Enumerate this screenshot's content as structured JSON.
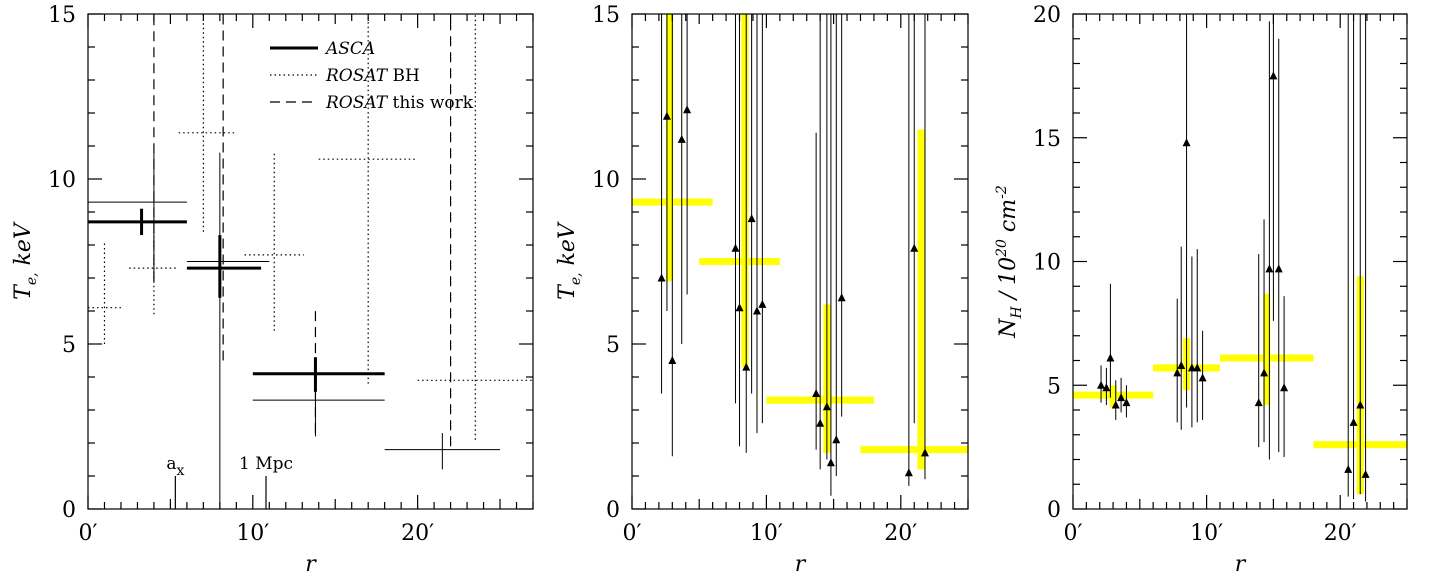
{
  "chart_data": [
    {
      "type": "scatter",
      "xlabel": "r",
      "ylabel": "T_e, keV",
      "xlim": [
        0,
        27
      ],
      "ylim": [
        0,
        15
      ],
      "x_ticks": [
        {
          "v": 0,
          "label": "0′"
        },
        {
          "v": 10,
          "label": "10′"
        },
        {
          "v": 20,
          "label": "20′"
        }
      ],
      "y_ticks": [
        0,
        5,
        10,
        15
      ],
      "legend": {
        "position": "top-right",
        "entries": [
          {
            "label": "ASCA",
            "style": "thick"
          },
          {
            "label": "ROSAT BH",
            "style": "dotted"
          },
          {
            "label": "ROSAT this work",
            "style": "dashed"
          }
        ]
      },
      "annotations": [
        {
          "text": "a_x",
          "x": 5.3
        },
        {
          "text": "1 Mpc",
          "x": 10.8
        }
      ],
      "series": [
        {
          "name": "ASCA",
          "style": "thick",
          "points": [
            {
              "x": 3.25,
              "xerr": [
                3.25,
                2.75
              ],
              "y": 8.7,
              "yerr": [
                0.4,
                0.4
              ]
            },
            {
              "x": 8.0,
              "xerr": [
                2.0,
                2.5
              ],
              "y": 7.3,
              "yerr": [
                0.9,
                1.0
              ]
            },
            {
              "x": 13.8,
              "xerr": [
                3.8,
                4.2
              ],
              "y": 4.1,
              "yerr": [
                0.55,
                0.5
              ]
            }
          ]
        },
        {
          "name": "ASCA thin",
          "style": "thin",
          "points": [
            {
              "x": 4.0,
              "xerr": [
                4.0,
                2.0
              ],
              "y": 9.3,
              "yerr": [
                2.4,
                1.5
              ]
            },
            {
              "x": 8.0,
              "xerr": [
                2.0,
                3.0
              ],
              "y": 7.5,
              "yerr": [
                7.5,
                3.3
              ]
            },
            {
              "x": 13.8,
              "xerr": [
                3.8,
                4.2
              ],
              "y": 3.3,
              "yerr": [
                1.1,
                0.9
              ]
            },
            {
              "x": 21.5,
              "xerr": [
                3.5,
                3.5
              ],
              "y": 1.8,
              "yerr": [
                0.6,
                0.5
              ]
            }
          ]
        },
        {
          "name": "ROSAT BH",
          "style": "dotted",
          "points": [
            {
              "x": 1.0,
              "xerr": [
                1.0,
                1.0
              ],
              "y": 6.1,
              "yerr": [
                1.1,
                2.0
              ]
            },
            {
              "x": 4.0,
              "xerr": [
                1.5,
                1.5
              ],
              "y": 7.3,
              "yerr": [
                1.4,
                1.1
              ]
            },
            {
              "x": 7.0,
              "xerr": [
                1.5,
                2.0
              ],
              "y": 11.4,
              "yerr": [
                3.0,
                3.6
              ]
            },
            {
              "x": 11.3,
              "xerr": [
                1.8,
                1.8
              ],
              "y": 7.7,
              "yerr": [
                2.3,
                3.1
              ]
            },
            {
              "x": 17.0,
              "xerr": [
                3.0,
                3.0
              ],
              "y": 10.6,
              "yerr": [
                6.8,
                4.4
              ]
            },
            {
              "x": 23.5,
              "xerr": [
                3.5,
                3.5
              ],
              "y": 3.9,
              "yerr": [
                1.8,
                11.1
              ]
            }
          ]
        },
        {
          "name": "ROSAT this work",
          "style": "dashed",
          "points": [
            {
              "x": 4.0,
              "y": 10.2,
              "yerr": [
                3.3,
                4.8
              ]
            },
            {
              "x": 8.2,
              "y": 7.7,
              "yerr": [
                3.2,
                7.3
              ]
            },
            {
              "x": 13.8,
              "y": 4.0,
              "yerr": [
                1.7,
                2.1
              ]
            },
            {
              "x": 22.0,
              "y": 3.8,
              "yerr": [
                1.9,
                11.2
              ]
            }
          ]
        }
      ]
    },
    {
      "type": "scatter",
      "xlabel": "r",
      "ylabel": "T_e, keV",
      "xlim": [
        0,
        25
      ],
      "ylim": [
        0,
        15
      ],
      "x_ticks": [
        {
          "v": 0,
          "label": "0′"
        },
        {
          "v": 10,
          "label": "10′"
        },
        {
          "v": 20,
          "label": "20′"
        }
      ],
      "y_ticks": [
        0,
        5,
        10,
        15
      ],
      "bands": [
        {
          "x": [
            0,
            6
          ],
          "y": 9.3,
          "xc": 2.8,
          "ylo": 6.9,
          "yhi": 15.0
        },
        {
          "x": [
            5,
            11
          ],
          "y": 7.5,
          "xc": 8.4,
          "ylo": 4.3,
          "yhi": 15.0
        },
        {
          "x": [
            10,
            18
          ],
          "y": 3.3,
          "xc": 14.5,
          "ylo": 1.7,
          "yhi": 6.2
        },
        {
          "x": [
            17,
            25
          ],
          "y": 1.8,
          "xc": 21.5,
          "ylo": 1.2,
          "yhi": 11.5
        }
      ],
      "points": [
        {
          "x": 2.2,
          "y": 7.0,
          "ylo": 3.5,
          "yhi": 15.0
        },
        {
          "x": 2.6,
          "y": 11.9,
          "ylo": 6.0,
          "yhi": 15.0
        },
        {
          "x": 3.0,
          "y": 4.5,
          "ylo": 1.6,
          "yhi": 15.0
        },
        {
          "x": 3.7,
          "y": 11.2,
          "ylo": 5.0,
          "yhi": 15.0
        },
        {
          "x": 4.1,
          "y": 12.1,
          "ylo": 6.5,
          "yhi": 15.0
        },
        {
          "x": 7.7,
          "y": 7.9,
          "ylo": 3.2,
          "yhi": 15.0
        },
        {
          "x": 8.0,
          "y": 6.1,
          "ylo": 1.9,
          "yhi": 15.0
        },
        {
          "x": 8.5,
          "y": 4.3,
          "ylo": 1.7,
          "yhi": 15.0
        },
        {
          "x": 8.9,
          "y": 8.8,
          "ylo": 3.5,
          "yhi": 15.0
        },
        {
          "x": 9.3,
          "y": 6.0,
          "ylo": 2.3,
          "yhi": 15.0
        },
        {
          "x": 9.7,
          "y": 6.2,
          "ylo": 2.6,
          "yhi": 15.0
        },
        {
          "x": 13.7,
          "y": 3.5,
          "ylo": 1.8,
          "yhi": 11.4
        },
        {
          "x": 14.0,
          "y": 2.6,
          "ylo": 1.2,
          "yhi": 15.0
        },
        {
          "x": 14.5,
          "y": 3.1,
          "ylo": 1.5,
          "yhi": 15.0
        },
        {
          "x": 14.8,
          "y": 1.4,
          "ylo": 0.4,
          "yhi": 15.0
        },
        {
          "x": 15.2,
          "y": 2.1,
          "ylo": 1.0,
          "yhi": 15.0
        },
        {
          "x": 15.6,
          "y": 6.4,
          "ylo": 2.8,
          "yhi": 15.0
        },
        {
          "x": 20.6,
          "y": 1.1,
          "ylo": 0.7,
          "yhi": 15.0
        },
        {
          "x": 21.0,
          "y": 7.9,
          "ylo": 2.6,
          "yhi": 15.0
        },
        {
          "x": 21.8,
          "y": 1.7,
          "ylo": 0.9,
          "yhi": 15.0
        }
      ]
    },
    {
      "type": "scatter",
      "xlabel": "r",
      "ylabel": "N_H / 10^20 cm^-2",
      "xlim": [
        0,
        25
      ],
      "ylim": [
        0,
        20
      ],
      "x_ticks": [
        {
          "v": 0,
          "label": "0′"
        },
        {
          "v": 10,
          "label": "10′"
        },
        {
          "v": 20,
          "label": "20′"
        }
      ],
      "y_ticks": [
        0,
        5,
        10,
        15,
        20
      ],
      "bands": [
        {
          "x": [
            0,
            6
          ],
          "y": 4.6,
          "xc": 3.0,
          "ylo": 4.1,
          "yhi": 5.0
        },
        {
          "x": [
            6,
            11
          ],
          "y": 5.7,
          "xc": 8.5,
          "ylo": 4.8,
          "yhi": 6.9
        },
        {
          "x": [
            11,
            18
          ],
          "y": 6.1,
          "xc": 14.5,
          "ylo": 4.2,
          "yhi": 8.7
        },
        {
          "x": [
            18,
            25
          ],
          "y": 2.6,
          "xc": 21.5,
          "ylo": 0.6,
          "yhi": 9.4
        }
      ],
      "points": [
        {
          "x": 2.1,
          "y": 5.0,
          "ylo": 4.3,
          "yhi": 5.8
        },
        {
          "x": 2.5,
          "y": 4.9,
          "ylo": 4.2,
          "yhi": 5.7
        },
        {
          "x": 2.8,
          "y": 6.1,
          "ylo": 4.5,
          "yhi": 9.1
        },
        {
          "x": 3.2,
          "y": 4.2,
          "ylo": 3.6,
          "yhi": 5.2
        },
        {
          "x": 3.6,
          "y": 4.5,
          "ylo": 3.9,
          "yhi": 5.3
        },
        {
          "x": 4.0,
          "y": 4.3,
          "ylo": 3.7,
          "yhi": 5.0
        },
        {
          "x": 7.8,
          "y": 5.5,
          "ylo": 3.5,
          "yhi": 8.5
        },
        {
          "x": 8.1,
          "y": 5.8,
          "ylo": 3.2,
          "yhi": 10.6
        },
        {
          "x": 8.5,
          "y": 14.8,
          "ylo": 4.1,
          "yhi": 20.0
        },
        {
          "x": 8.9,
          "y": 5.7,
          "ylo": 3.3,
          "yhi": 10.2
        },
        {
          "x": 9.3,
          "y": 5.7,
          "ylo": 3.5,
          "yhi": 10.5
        },
        {
          "x": 9.7,
          "y": 5.3,
          "ylo": 3.6,
          "yhi": 7.2
        },
        {
          "x": 13.9,
          "y": 4.3,
          "ylo": 2.5,
          "yhi": 10.3
        },
        {
          "x": 14.3,
          "y": 5.5,
          "ylo": 2.7,
          "yhi": 11.7
        },
        {
          "x": 14.7,
          "y": 9.7,
          "ylo": 2.0,
          "yhi": 19.7
        },
        {
          "x": 15.0,
          "y": 17.5,
          "ylo": 7.6,
          "yhi": 20.0
        },
        {
          "x": 15.4,
          "y": 9.7,
          "ylo": 2.3,
          "yhi": 19.0
        },
        {
          "x": 15.8,
          "y": 4.9,
          "ylo": 2.1,
          "yhi": 8.6
        },
        {
          "x": 20.6,
          "y": 1.6,
          "ylo": 0.5,
          "yhi": 20.0
        },
        {
          "x": 21.0,
          "y": 3.5,
          "ylo": 0.4,
          "yhi": 20.0
        },
        {
          "x": 21.5,
          "y": 4.2,
          "ylo": 0.6,
          "yhi": 20.0
        },
        {
          "x": 21.9,
          "y": 1.4,
          "ylo": 0.3,
          "yhi": 20.0
        }
      ]
    }
  ]
}
